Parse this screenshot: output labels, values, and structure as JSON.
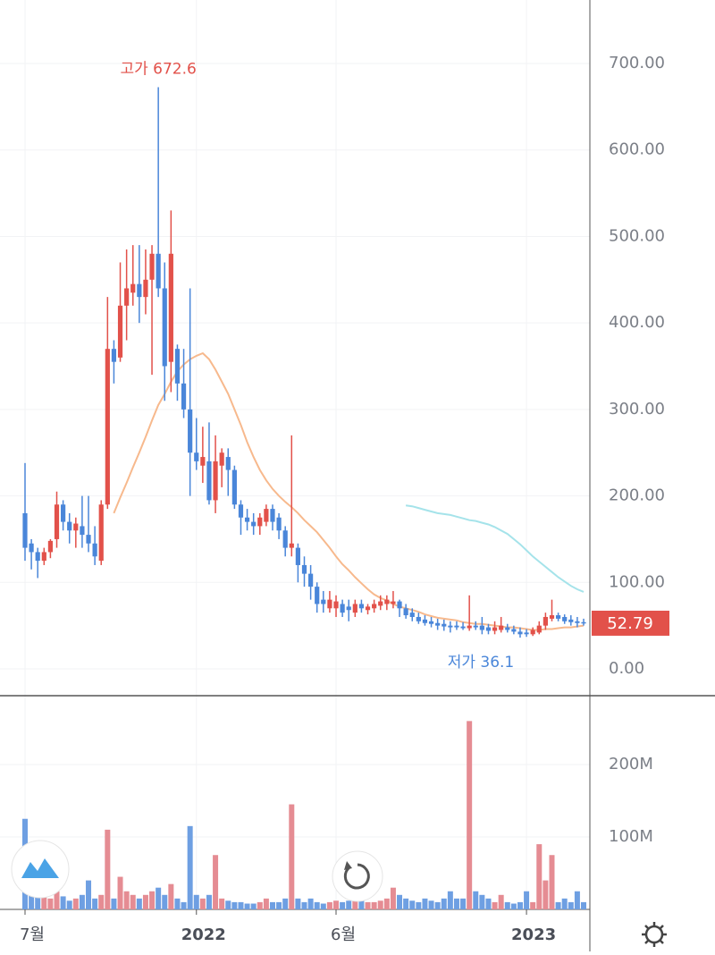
{
  "chart_data": [
    {
      "type": "candlestick",
      "categories": [
        "7월",
        null,
        null,
        null,
        null,
        null,
        null,
        null,
        null,
        null,
        null,
        null,
        null,
        null,
        null,
        null,
        null,
        null,
        null,
        null,
        null,
        null,
        null,
        null,
        null,
        null,
        null,
        "2022",
        null,
        null,
        null,
        null,
        null,
        null,
        null,
        null,
        null,
        null,
        null,
        null,
        null,
        null,
        null,
        null,
        null,
        null,
        null,
        null,
        null,
        "6월",
        null,
        null,
        null,
        null,
        null,
        null,
        null,
        null,
        null,
        null,
        null,
        null,
        null,
        null,
        null,
        null,
        null,
        null,
        null,
        null,
        null,
        null,
        null,
        null,
        null,
        null,
        null,
        null,
        null,
        "2023",
        null,
        null,
        null,
        null,
        null,
        null,
        null,
        null,
        null
      ],
      "open": [
        180,
        145,
        135,
        125,
        135,
        150,
        190,
        170,
        160,
        165,
        155,
        145,
        125,
        190,
        370,
        360,
        420,
        435,
        445,
        430,
        450,
        480,
        440,
        355,
        370,
        330,
        300,
        250,
        235,
        240,
        195,
        235,
        245,
        230,
        190,
        175,
        170,
        165,
        170,
        185,
        175,
        160,
        140,
        140,
        120,
        110,
        95,
        80,
        70,
        70,
        75,
        72,
        65,
        75,
        68,
        70,
        73,
        75,
        75,
        78,
        70,
        65,
        60,
        57,
        55,
        53,
        52,
        50,
        50,
        49,
        47,
        50,
        50,
        48,
        44,
        45,
        48,
        46,
        43,
        42,
        40,
        42,
        50,
        58,
        62,
        60,
        57,
        55,
        54
      ],
      "high": [
        238,
        150,
        140,
        140,
        150,
        205,
        195,
        180,
        175,
        200,
        200,
        165,
        195,
        430,
        380,
        470,
        485,
        490,
        490,
        485,
        490,
        672.6,
        470,
        530,
        375,
        370,
        440,
        290,
        280,
        285,
        270,
        255,
        255,
        235,
        195,
        185,
        180,
        180,
        190,
        190,
        180,
        165,
        270,
        145,
        130,
        120,
        100,
        90,
        90,
        85,
        80,
        80,
        80,
        80,
        75,
        80,
        85,
        85,
        90,
        80,
        75,
        70,
        65,
        62,
        60,
        58,
        57,
        55,
        55,
        54,
        85,
        55,
        60,
        52,
        55,
        60,
        52,
        50,
        48,
        46,
        48,
        55,
        65,
        80,
        65,
        63,
        62,
        60,
        58
      ],
      "low": [
        125,
        115,
        105,
        120,
        128,
        140,
        160,
        145,
        140,
        140,
        135,
        120,
        120,
        185,
        330,
        355,
        380,
        420,
        400,
        410,
        340,
        430,
        310,
        320,
        310,
        290,
        200,
        230,
        215,
        190,
        180,
        210,
        200,
        185,
        155,
        160,
        155,
        155,
        165,
        160,
        150,
        130,
        130,
        100,
        95,
        80,
        65,
        65,
        65,
        60,
        60,
        55,
        60,
        65,
        63,
        65,
        68,
        68,
        70,
        60,
        58,
        55,
        52,
        50,
        48,
        45,
        44,
        42,
        45,
        45,
        44,
        45,
        40,
        40,
        40,
        42,
        42,
        40,
        36.1,
        37,
        38,
        40,
        45,
        55,
        55,
        52,
        50,
        48,
        50
      ],
      "close": [
        140,
        135,
        125,
        135,
        148,
        190,
        170,
        160,
        168,
        155,
        145,
        130,
        190,
        370,
        355,
        420,
        440,
        445,
        430,
        450,
        480,
        440,
        350,
        480,
        330,
        300,
        250,
        240,
        245,
        195,
        240,
        250,
        230,
        190,
        175,
        170,
        165,
        175,
        185,
        170,
        160,
        140,
        145,
        120,
        110,
        95,
        75,
        75,
        80,
        78,
        65,
        68,
        75,
        70,
        72,
        75,
        78,
        80,
        78,
        70,
        62,
        60,
        55,
        53,
        52,
        50,
        49,
        48,
        48,
        47,
        50,
        48,
        45,
        44,
        48,
        50,
        45,
        43,
        40,
        40,
        45,
        50,
        60,
        62,
        58,
        55,
        54,
        53,
        52.79
      ],
      "up_color": "#e2514a",
      "down_color": "#4a86d9",
      "series": [
        {
          "color": "#f7b98d",
          "values": [
            null,
            null,
            null,
            null,
            null,
            null,
            null,
            null,
            null,
            null,
            null,
            null,
            null,
            null,
            180,
            198,
            215,
            233,
            250,
            268,
            287,
            305,
            318,
            332,
            344,
            352,
            358,
            362,
            365,
            358,
            346,
            332,
            318,
            300,
            282,
            262,
            245,
            230,
            218,
            208,
            200,
            193,
            187,
            180,
            172,
            165,
            158,
            149,
            140,
            130,
            121,
            114,
            106,
            99,
            92,
            86,
            82,
            79,
            75,
            72,
            70,
            68,
            66,
            63,
            61,
            59,
            58,
            57,
            56,
            54,
            53,
            52,
            52,
            51,
            50,
            49,
            48,
            48,
            47,
            46,
            45,
            45,
            46,
            46,
            47,
            48,
            48,
            49,
            50
          ]
        },
        {
          "color": "#a5e3ea",
          "values": [
            null,
            null,
            null,
            null,
            null,
            null,
            null,
            null,
            null,
            null,
            null,
            null,
            null,
            null,
            null,
            null,
            null,
            null,
            null,
            null,
            null,
            null,
            null,
            null,
            null,
            null,
            null,
            null,
            null,
            null,
            null,
            null,
            null,
            null,
            null,
            null,
            null,
            null,
            null,
            null,
            null,
            null,
            null,
            null,
            null,
            null,
            null,
            null,
            null,
            null,
            null,
            null,
            null,
            null,
            null,
            null,
            null,
            null,
            null,
            null,
            189,
            188,
            186,
            184,
            182,
            180,
            179,
            178,
            176,
            174,
            172,
            171,
            169,
            167,
            164,
            160,
            156,
            150,
            144,
            137,
            130,
            124,
            118,
            112,
            106,
            101,
            96,
            92,
            89
          ]
        }
      ],
      "ylim": [
        0,
        760
      ],
      "yticks": [
        {
          "value": 0,
          "label": "0.00"
        },
        {
          "value": 100,
          "label": "100.00"
        },
        {
          "value": 200,
          "label": "200.00"
        },
        {
          "value": 300,
          "label": "300.00"
        },
        {
          "value": 400,
          "label": "400.00"
        },
        {
          "value": 500,
          "label": "500.00"
        },
        {
          "value": 600,
          "label": "600.00"
        },
        {
          "value": 700,
          "label": "700.00"
        }
      ],
      "high_label": "고가 672.6",
      "low_label": "저가 36.1",
      "last_price": 52.79,
      "grid": true
    },
    {
      "type": "bar",
      "values": [
        125,
        30,
        20,
        20,
        15,
        25,
        18,
        12,
        15,
        20,
        40,
        15,
        20,
        110,
        15,
        45,
        25,
        20,
        15,
        20,
        25,
        30,
        20,
        35,
        15,
        10,
        115,
        20,
        15,
        20,
        75,
        15,
        12,
        10,
        10,
        8,
        8,
        10,
        15,
        10,
        10,
        15,
        145,
        15,
        10,
        15,
        10,
        8,
        10,
        12,
        10,
        12,
        15,
        12,
        10,
        10,
        12,
        15,
        30,
        20,
        15,
        12,
        10,
        15,
        12,
        10,
        15,
        25,
        15,
        15,
        260,
        25,
        20,
        15,
        10,
        20,
        10,
        8,
        10,
        25,
        10,
        90,
        40,
        75,
        10,
        15,
        10,
        25,
        10
      ],
      "ylim": [
        0,
        295
      ],
      "yticks": [
        {
          "value": 100,
          "label": "100M"
        },
        {
          "value": 200,
          "label": "200M"
        }
      ],
      "grid": true
    }
  ]
}
